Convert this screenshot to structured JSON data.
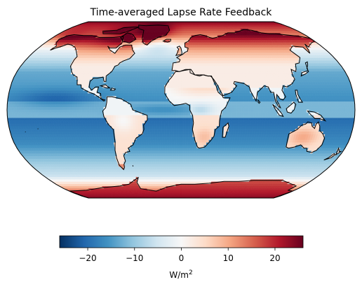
{
  "title": "Time-averaged Lapse Rate Feedback",
  "projection": "Robinson",
  "colormap": "RdBu_r",
  "colors": {
    "min": "#053061",
    "mid": "#f7f7f7",
    "max": "#67001f"
  },
  "colorbar": {
    "orientation": "horizontal",
    "vmin": -26,
    "vmax": 26,
    "ticks": [
      -20,
      -10,
      0,
      10,
      20
    ],
    "tick_labels": [
      "−20",
      "−10",
      "0",
      "10",
      "20"
    ],
    "label_base": "W/m",
    "label_sup": "2"
  },
  "field_pattern": [
    {
      "region": "Arctic / Greenland / northern Canada",
      "approx_value": 20
    },
    {
      "region": "Antarctica",
      "approx_value": 22
    },
    {
      "region": "Southern Ocean",
      "approx_value": -8
    },
    {
      "region": "Tropical oceans",
      "approx_value": -20
    },
    {
      "region": "Equatorial Pacific",
      "approx_value": -12
    },
    {
      "region": "Sahara / Arabia",
      "approx_value": 5
    },
    {
      "region": "Australia interior",
      "approx_value": 10
    },
    {
      "region": "Southern Africa",
      "approx_value": 8
    }
  ]
}
